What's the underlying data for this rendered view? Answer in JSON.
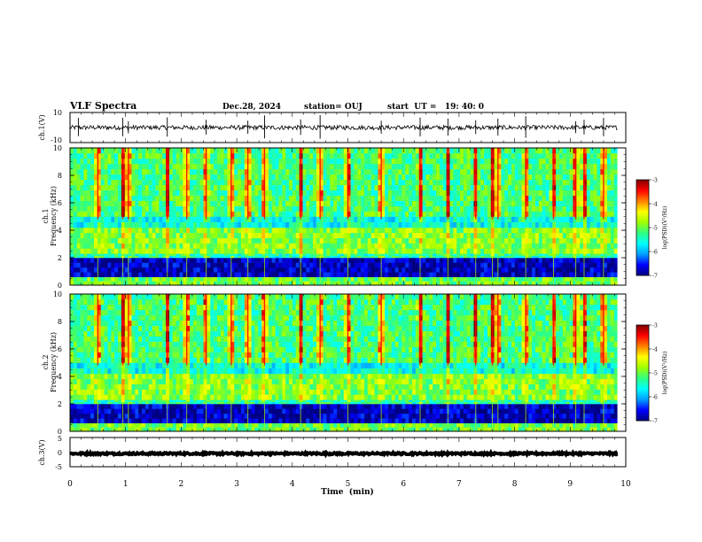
{
  "header": {
    "title": "VLF Spectra",
    "date": "Dec.28, 2024",
    "station": "station= OUJ",
    "start": "start  UT =   19: 40: 0"
  },
  "chart_data": [
    {
      "type": "line",
      "name": "ch1-waveform",
      "ylabel": "ch.1(V)",
      "ylim": [
        -10,
        10
      ],
      "yticks": [
        "10",
        "-10"
      ],
      "xlim": [
        0,
        10
      ],
      "baseline": 0,
      "noise_amplitude": 1.5,
      "spike_times": [
        0.15,
        0.95,
        1.05,
        1.75,
        2.45,
        3.2,
        3.5,
        4.15,
        4.5,
        5.6,
        6.3,
        6.8,
        7.3,
        7.7,
        8.2,
        9.1,
        9.25,
        9.6
      ]
    },
    {
      "type": "heatmap",
      "name": "ch1-spectrogram",
      "ylabel": "ch.1\nFrequency  (kHz)",
      "ylim": [
        0,
        10
      ],
      "yticks": [
        0,
        2,
        4,
        6,
        8,
        10
      ],
      "xlim": [
        0,
        10
      ],
      "colorbar": {
        "label": "log(PSD)(V²/Hz)",
        "range": [
          -7,
          -3
        ],
        "ticks": [
          -7,
          -6,
          -5,
          -4,
          -3
        ]
      },
      "bands": [
        {
          "from_khz": 0,
          "to_khz": 0.6,
          "log_psd": -5.0
        },
        {
          "from_khz": 0.6,
          "to_khz": 2.0,
          "log_psd": -6.8
        },
        {
          "from_khz": 2.0,
          "to_khz": 2.3,
          "log_psd": -5.4
        },
        {
          "from_khz": 2.3,
          "to_khz": 4.2,
          "log_psd": -4.9
        },
        {
          "from_khz": 4.2,
          "to_khz": 5.0,
          "log_psd": -5.6
        },
        {
          "from_khz": 5.0,
          "to_khz": 10.0,
          "log_psd": -5.2
        }
      ],
      "sferic_times": [
        0.5,
        0.95,
        1.05,
        1.75,
        2.1,
        2.45,
        2.9,
        3.2,
        3.5,
        4.15,
        4.5,
        5.0,
        5.6,
        6.3,
        6.8,
        7.3,
        7.6,
        7.7,
        8.2,
        8.7,
        9.1,
        9.25,
        9.6
      ]
    },
    {
      "type": "heatmap",
      "name": "ch2-spectrogram",
      "ylabel": "ch.2\nFrequency  (kHz)",
      "ylim": [
        0,
        10
      ],
      "yticks": [
        0,
        2,
        4,
        6,
        8,
        10
      ],
      "xlim": [
        0,
        10
      ],
      "colorbar": {
        "label": "log(PSD)(V²/Hz)",
        "range": [
          -7,
          -3
        ],
        "ticks": [
          -7,
          -6,
          -5,
          -4,
          -3
        ]
      },
      "bands": [
        {
          "from_khz": 0,
          "to_khz": 0.6,
          "log_psd": -5.0
        },
        {
          "from_khz": 0.6,
          "to_khz": 2.0,
          "log_psd": -6.8
        },
        {
          "from_khz": 2.0,
          "to_khz": 2.3,
          "log_psd": -5.4
        },
        {
          "from_khz": 2.3,
          "to_khz": 4.2,
          "log_psd": -4.9
        },
        {
          "from_khz": 4.2,
          "to_khz": 5.0,
          "log_psd": -5.6
        },
        {
          "from_khz": 5.0,
          "to_khz": 10.0,
          "log_psd": -5.2
        }
      ],
      "sferic_times": [
        0.5,
        0.95,
        1.05,
        1.75,
        2.1,
        2.45,
        2.9,
        3.2,
        3.5,
        4.15,
        4.5,
        5.0,
        5.6,
        6.3,
        6.8,
        7.3,
        7.6,
        7.7,
        8.2,
        8.7,
        9.1,
        9.25,
        9.6
      ]
    },
    {
      "type": "line",
      "name": "ch3-waveform",
      "ylabel": "ch.3(V)",
      "ylim": [
        -5,
        5
      ],
      "yticks": [
        "5",
        "0",
        "-5"
      ],
      "xlim": [
        0,
        10
      ],
      "baseline": -0.5,
      "noise_amplitude": 0.3,
      "spike_times": []
    }
  ],
  "xaxis": {
    "label": "Time  (min)",
    "ticks": [
      "0",
      "1",
      "2",
      "3",
      "4",
      "5",
      "6",
      "7",
      "8",
      "9",
      "10"
    ],
    "data_end_min": 9.85
  },
  "colors": {
    "colormap": [
      "#000080",
      "#0000ff",
      "#00a0ff",
      "#00ffff",
      "#30ff80",
      "#a0ff00",
      "#ffff00",
      "#ff8000",
      "#ff0000",
      "#800000"
    ]
  }
}
